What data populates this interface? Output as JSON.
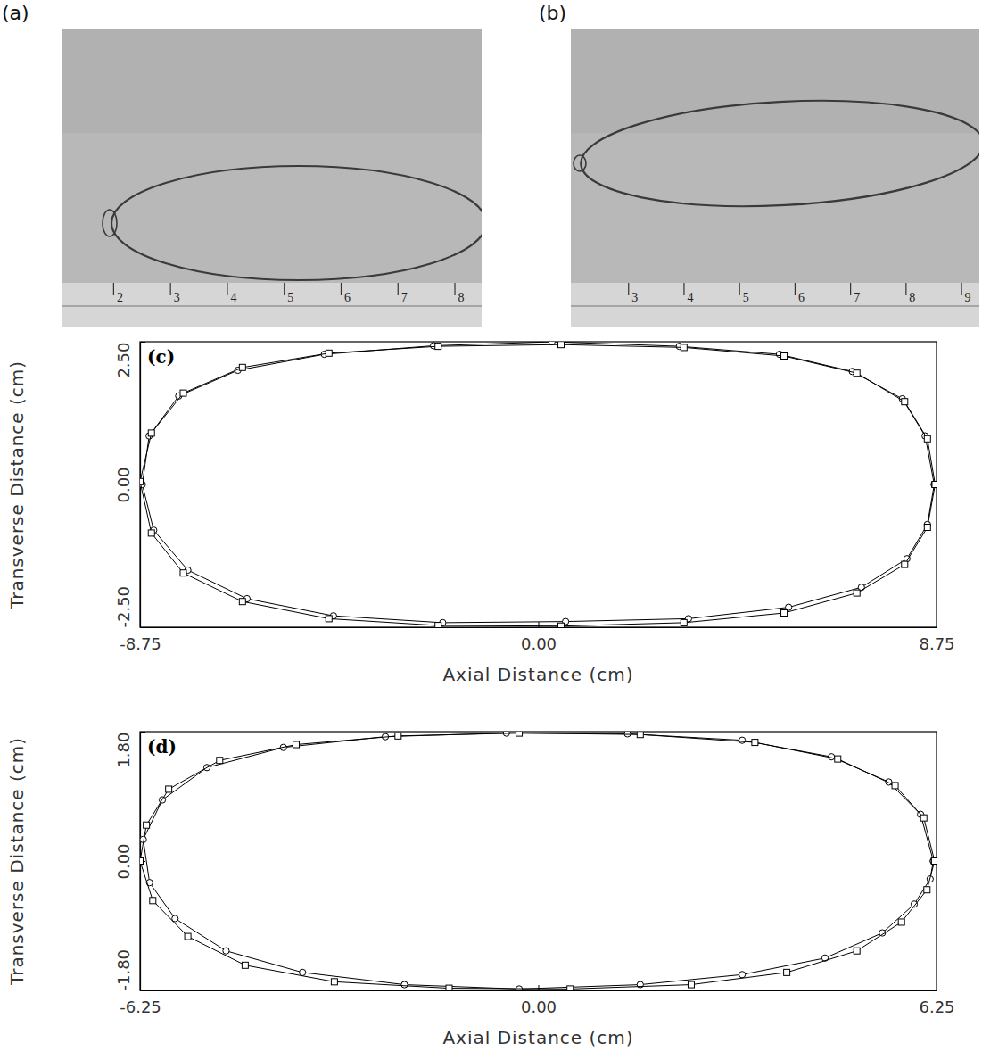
{
  "chart_data": [
    {
      "type": "photo",
      "label": "(a)",
      "xlim": [
        1.1,
        8.47
      ],
      "xticks": [
        2,
        3,
        4,
        5,
        6,
        7,
        8
      ]
    },
    {
      "type": "photo",
      "label": "(b)",
      "xlim": [
        1.96,
        9.32
      ],
      "xticks": [
        3,
        4,
        5,
        6,
        7,
        8,
        9
      ]
    },
    {
      "type": "line",
      "label": "(c)",
      "x_label": "Axial Distance (cm)",
      "y_label": "Transverse Distance (cm)",
      "xlim": [
        -8.75,
        8.75
      ],
      "xticks": [
        -8.75,
        {
          "value": 0,
          "label": "0.00"
        },
        8.75
      ],
      "ylim": [
        -2.5,
        2.5
      ],
      "yticks": [
        {
          "value": -2.5,
          "label": "-2.50"
        },
        {
          "value": 0,
          "label": "0.00"
        },
        {
          "value": 2.5,
          "label": "2.50"
        }
      ],
      "series": [
        {
          "marker": "circle",
          "color": "#000000",
          "x": [
            8.7,
            8.5,
            8.0,
            6.9,
            5.3,
            3.1,
            0.3,
            -2.3,
            -4.7,
            -6.6,
            -7.9,
            -8.55,
            -8.7,
            -8.45,
            -7.7,
            -6.4,
            -4.5,
            -2.1,
            0.6,
            3.3,
            5.5,
            7.1,
            8.1,
            8.55,
            8.7
          ],
          "values": [
            0.0,
            0.85,
            1.5,
            1.98,
            2.28,
            2.42,
            2.5,
            2.43,
            2.28,
            2.0,
            1.55,
            0.85,
            0.0,
            -0.8,
            -1.5,
            -2.0,
            -2.3,
            -2.42,
            -2.4,
            -2.35,
            -2.15,
            -1.8,
            -1.3,
            -0.7,
            0.0
          ]
        },
        {
          "marker": "square",
          "color": "#000000",
          "x": [
            8.72,
            8.55,
            8.05,
            7.0,
            5.4,
            3.2,
            0.5,
            -2.2,
            -4.6,
            -6.5,
            -7.8,
            -8.5,
            -8.75,
            -8.5,
            -7.8,
            -6.5,
            -4.6,
            -2.2,
            0.5,
            3.2,
            5.4,
            7.0,
            8.05,
            8.55,
            8.72
          ],
          "values": [
            0.0,
            0.8,
            1.45,
            1.95,
            2.25,
            2.4,
            2.45,
            2.42,
            2.3,
            2.05,
            1.6,
            0.9,
            0.05,
            -0.85,
            -1.55,
            -2.05,
            -2.35,
            -2.47,
            -2.48,
            -2.42,
            -2.25,
            -1.9,
            -1.4,
            -0.75,
            0.0
          ]
        }
      ]
    },
    {
      "type": "line",
      "label": "(d)",
      "x_label": "Axial Distance (cm)",
      "y_label": "Transverse Distance (cm)",
      "xlim": [
        -6.25,
        6.25
      ],
      "xticks": [
        -6.25,
        {
          "value": 0,
          "label": "0.00"
        },
        6.25
      ],
      "ylim": [
        -1.8,
        1.8
      ],
      "yticks": [
        {
          "value": -1.8,
          "label": "-1.80"
        },
        {
          "value": 0,
          "label": "0.00"
        },
        {
          "value": 1.8,
          "label": "1.80"
        }
      ],
      "series": [
        {
          "marker": "circle",
          "color": "#000000",
          "x": [
            6.2,
            6.0,
            5.5,
            4.6,
            3.2,
            1.4,
            -0.5,
            -2.4,
            -4.0,
            -5.2,
            -5.9,
            -6.2,
            -6.1,
            -5.7,
            -4.9,
            -3.7,
            -2.1,
            -0.3,
            1.6,
            3.2,
            4.5,
            5.4,
            5.9,
            6.15,
            6.2
          ],
          "values": [
            0.0,
            0.65,
            1.1,
            1.45,
            1.68,
            1.77,
            1.78,
            1.73,
            1.58,
            1.3,
            0.85,
            0.3,
            -0.3,
            -0.8,
            -1.25,
            -1.55,
            -1.72,
            -1.78,
            -1.72,
            -1.58,
            -1.35,
            -1.0,
            -0.6,
            -0.25,
            0.0
          ]
        },
        {
          "marker": "square",
          "color": "#000000",
          "x": [
            6.22,
            6.05,
            5.6,
            4.7,
            3.4,
            1.6,
            -0.3,
            -2.2,
            -3.8,
            -5.0,
            -5.8,
            -6.15,
            -6.25,
            -6.05,
            -5.5,
            -4.6,
            -3.2,
            -1.4,
            0.5,
            2.4,
            3.9,
            5.0,
            5.7,
            6.1,
            6.22
          ],
          "values": [
            0.0,
            0.6,
            1.05,
            1.42,
            1.65,
            1.76,
            1.78,
            1.74,
            1.62,
            1.4,
            1.0,
            0.5,
            0.0,
            -0.55,
            -1.05,
            -1.45,
            -1.68,
            -1.77,
            -1.78,
            -1.72,
            -1.55,
            -1.25,
            -0.85,
            -0.4,
            0.0
          ]
        }
      ]
    }
  ]
}
